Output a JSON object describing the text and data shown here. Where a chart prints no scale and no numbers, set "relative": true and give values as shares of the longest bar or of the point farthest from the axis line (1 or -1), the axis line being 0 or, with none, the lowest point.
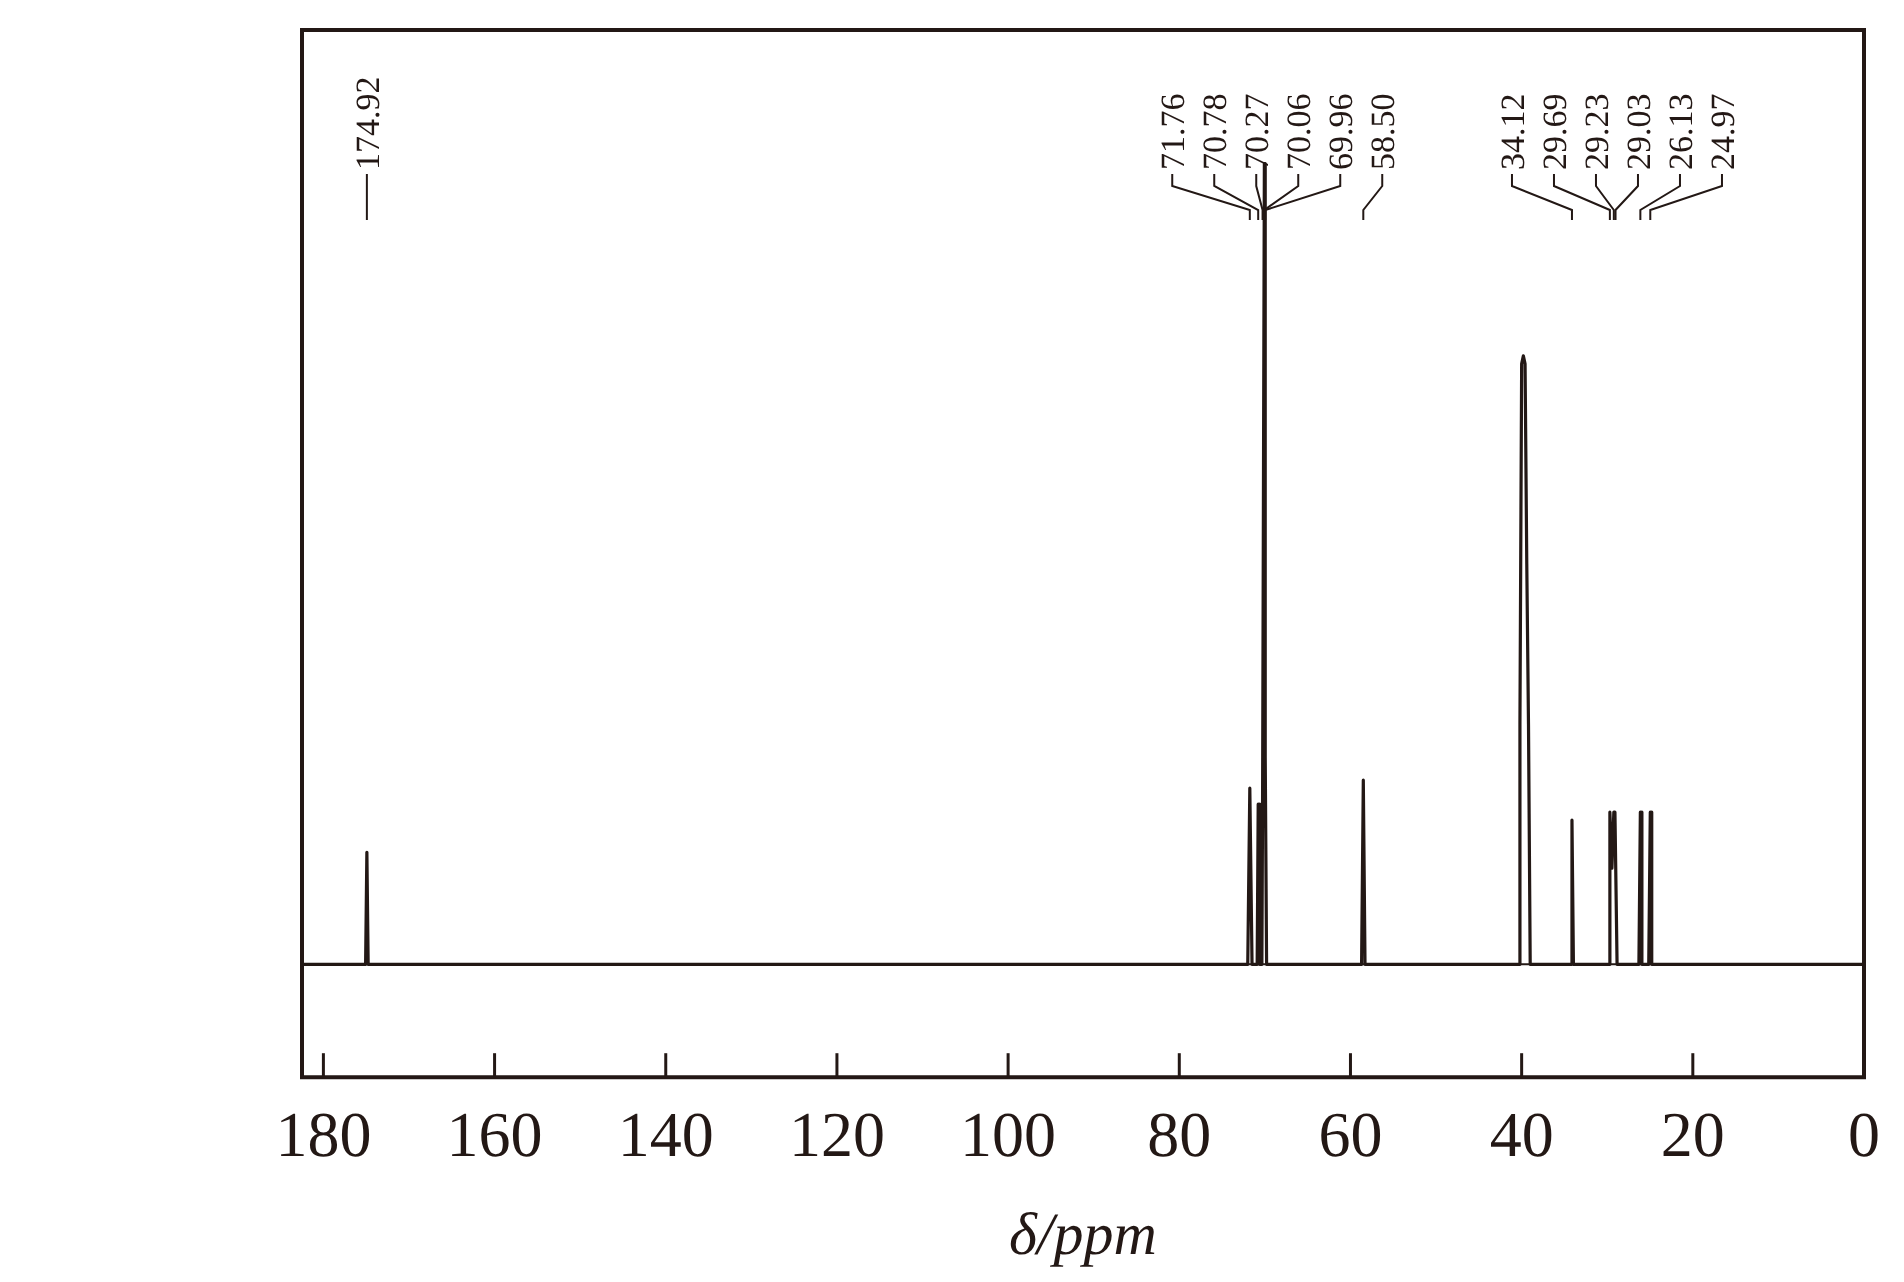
{
  "chart_data": {
    "type": "line",
    "xlabel": "δ/ppm",
    "relative": true,
    "grid": false,
    "legend": false,
    "marker": "none",
    "line_style": "solid",
    "xlim": [
      182.5,
      0
    ],
    "xticks": [
      180,
      160,
      140,
      120,
      100,
      80,
      60,
      40,
      20,
      0
    ],
    "series": [
      {
        "color": "#231815",
        "x": [
          182.5,
          175.07,
          174.92,
          174.77,
          72.0,
          71.76,
          71.5,
          70.9,
          70.78,
          70.6,
          70.35,
          70.27,
          70.06,
          69.96,
          69.8,
          58.7,
          58.5,
          58.3,
          40.4,
          40.2,
          40.0,
          39.8,
          39.6,
          39.4,
          39.2,
          39.0,
          34.3,
          34.12,
          33.95,
          29.9,
          29.69,
          29.45,
          29.23,
          29.1,
          29.03,
          28.85,
          26.3,
          26.13,
          25.95,
          25.15,
          24.97,
          24.8,
          0
        ],
        "values": [
          0,
          0,
          0.14,
          0,
          0,
          0.22,
          0,
          0,
          0.2,
          0,
          0,
          0.2,
          1.0,
          0.26,
          0,
          0,
          0.23,
          0,
          0,
          0.3,
          0.75,
          0.76,
          0.75,
          0.5,
          0.3,
          0,
          0,
          0.18,
          0,
          0,
          0.19,
          0.12,
          0.19,
          0.19,
          0.19,
          0,
          0,
          0.19,
          0,
          0,
          0.19,
          0,
          0
        ]
      }
    ],
    "annotations": [
      {
        "text": "174.92",
        "x": 174.92
      },
      {
        "text": "71.76",
        "x": 71.76
      },
      {
        "text": "70.78",
        "x": 70.78
      },
      {
        "text": "70.27",
        "x": 70.27
      },
      {
        "text": "70.06",
        "x": 70.06
      },
      {
        "text": "69.96",
        "x": 69.96
      },
      {
        "text": "58.50",
        "x": 58.5
      },
      {
        "text": "34.12",
        "x": 34.12
      },
      {
        "text": "29.69",
        "x": 29.69
      },
      {
        "text": "29.23",
        "x": 29.23
      },
      {
        "text": "29.03",
        "x": 29.03
      },
      {
        "text": "26.13",
        "x": 26.13
      },
      {
        "text": "24.97",
        "x": 24.97
      }
    ]
  }
}
